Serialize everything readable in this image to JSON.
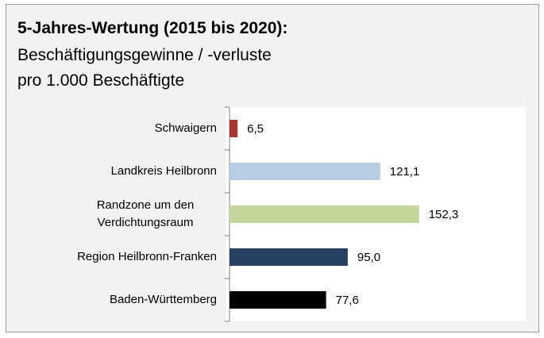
{
  "chart_data": {
    "type": "hbar",
    "title": "5-Jahres-Wertung (2015 bis 2020):",
    "subtitle": [
      "Beschäftigungsgewinne / -verluste",
      "pro 1.000 Beschäftigte"
    ],
    "categories": [
      "Schwaigern",
      "Landkreis Heilbronn",
      "Randzone um den Verdichtungsraum",
      "Region Heilbronn-Franken",
      "Baden-Württemberg"
    ],
    "values": [
      6.5,
      121.1,
      152.3,
      95.0,
      77.6
    ],
    "value_labels": [
      "6,5",
      "121,1",
      "152,3",
      "95,0",
      "77,6"
    ],
    "colors": [
      "#a5352f",
      "#b8cce4",
      "#c4d79b",
      "#254061",
      "#000000"
    ],
    "xlim": [
      0,
      238
    ]
  }
}
